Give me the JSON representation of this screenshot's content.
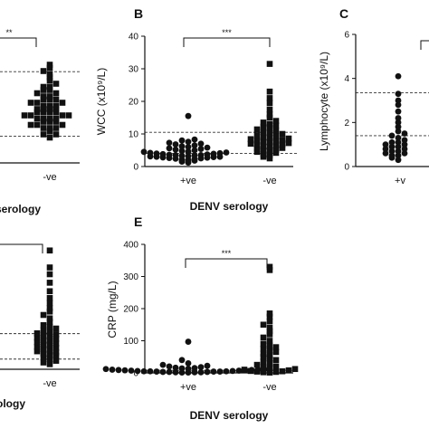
{
  "colors": {
    "ink": "#111111",
    "reference_line": "#333333"
  },
  "chart_data": [
    {
      "panel_id": "A",
      "panel_label": "",
      "type": "scatter",
      "ylabel": "",
      "xlabel": "serology",
      "categories": [
        "",
        "-ve"
      ],
      "yticks": [],
      "ylim": [
        0,
        40
      ],
      "reference_lines": [
        8.4,
        28.8
      ],
      "significance": "**",
      "series": [
        {
          "marker": "circle",
          "values": []
        },
        {
          "marker": "square",
          "values": [
            8,
            9,
            9,
            10,
            11,
            11,
            11,
            12,
            12,
            12,
            13,
            13,
            13,
            14,
            14,
            14,
            14,
            15,
            15,
            15,
            15,
            16,
            16,
            16,
            16,
            17,
            17,
            17,
            17,
            18,
            18,
            18,
            19,
            19,
            19,
            20,
            20,
            20,
            21,
            21,
            22,
            22,
            23,
            23,
            24,
            24,
            25,
            26,
            27,
            28,
            29,
            30,
            31
          ]
        }
      ]
    },
    {
      "panel_id": "B",
      "panel_label": "B",
      "type": "scatter",
      "ylabel": "WCC (x10⁹/L)",
      "xlabel": "DENV serology",
      "categories": [
        "+ve",
        "-ve"
      ],
      "yticks": [
        "0",
        "10",
        "20",
        "30",
        "40"
      ],
      "ylim": [
        0,
        40
      ],
      "reference_lines": [
        4.0,
        10.5
      ],
      "significance": "***",
      "series": [
        {
          "marker": "circle",
          "values": [
            1.2,
            1.5,
            1.8,
            2.0,
            2.1,
            2.3,
            2.4,
            2.5,
            2.6,
            2.7,
            2.8,
            2.9,
            3.0,
            3.0,
            3.1,
            3.2,
            3.3,
            3.4,
            3.5,
            3.5,
            3.6,
            3.7,
            3.8,
            3.9,
            4.0,
            4.1,
            4.2,
            4.3,
            4.5,
            4.6,
            4.8,
            5.0,
            5.2,
            5.4,
            5.6,
            5.8,
            6.0,
            6.2,
            6.5,
            6.8,
            7.0,
            7.3,
            7.6,
            8.0,
            8.3,
            15.5
          ]
        },
        {
          "marker": "square",
          "values": [
            2.5,
            3.0,
            3.4,
            3.8,
            4.2,
            4.5,
            4.8,
            5.0,
            5.2,
            5.5,
            5.7,
            6.0,
            6.2,
            6.4,
            6.6,
            6.8,
            7.0,
            7.2,
            7.4,
            7.6,
            7.8,
            8.0,
            8.2,
            8.4,
            8.6,
            8.8,
            9.0,
            9.3,
            9.6,
            10.0,
            10.3,
            10.6,
            11.0,
            11.4,
            11.8,
            12.2,
            12.6,
            13.0,
            13.5,
            14.0,
            15.0,
            16.0,
            17.5,
            19.5,
            21.0,
            23.0,
            31.5
          ]
        }
      ]
    },
    {
      "panel_id": "C",
      "panel_label": "C",
      "type": "scatter",
      "ylabel": "Lymphocyte (x10⁹/L)",
      "xlabel": "",
      "categories": [
        "+v"
      ],
      "yticks": [
        "0",
        "2",
        "4",
        "6"
      ],
      "ylim": [
        0,
        6
      ],
      "reference_lines": [
        1.4,
        3.35
      ],
      "significance": "",
      "series": [
        {
          "marker": "circle",
          "values": [
            0.3,
            0.4,
            0.5,
            0.5,
            0.6,
            0.6,
            0.7,
            0.7,
            0.8,
            0.8,
            0.9,
            0.9,
            1.0,
            1.0,
            1.1,
            1.1,
            1.2,
            1.3,
            1.4,
            1.5,
            1.6,
            1.8,
            2.0,
            2.2,
            2.5,
            2.8,
            3.0,
            3.3,
            4.1
          ]
        }
      ]
    },
    {
      "panel_id": "D",
      "panel_label": "",
      "type": "scatter",
      "ylabel": "",
      "xlabel": "ology",
      "categories": [
        "",
        "-ve"
      ],
      "yticks": [],
      "ylim": [
        0,
        40
      ],
      "reference_lines": [
        3.0,
        10.5
      ],
      "significance": "",
      "series": [
        {
          "marker": "circle",
          "values": []
        },
        {
          "marker": "square",
          "values": [
            1.5,
            2.0,
            2.5,
            3.0,
            3.5,
            4.0,
            4.3,
            4.6,
            5.0,
            5.3,
            5.6,
            6.0,
            6.3,
            6.6,
            7.0,
            7.3,
            7.6,
            8.0,
            8.3,
            8.6,
            9.0,
            9.3,
            9.6,
            10.0,
            10.3,
            10.6,
            11.0,
            11.5,
            12.0,
            12.5,
            13.0,
            14.0,
            15.0,
            16.0,
            17.0,
            18.0,
            19.5,
            21.0,
            23.0,
            25.5,
            28.0,
            30.0,
            35.0
          ]
        }
      ]
    },
    {
      "panel_id": "E",
      "panel_label": "E",
      "type": "scatter",
      "ylabel": "CRP (mg/L)",
      "xlabel": "DENV serology",
      "categories": [
        "+ve",
        "-ve"
      ],
      "yticks": [
        "0",
        "100",
        "200",
        "300",
        "400"
      ],
      "ylim": [
        0,
        400
      ],
      "reference_lines": [
        8
      ],
      "significance": "***",
      "series": [
        {
          "marker": "circle",
          "values": [
            1,
            1,
            2,
            2,
            2,
            3,
            3,
            3,
            4,
            4,
            4,
            5,
            5,
            5,
            6,
            6,
            7,
            7,
            8,
            8,
            9,
            9,
            10,
            10,
            11,
            12,
            13,
            14,
            15,
            16,
            18,
            20,
            22,
            25,
            30,
            40,
            97
          ]
        },
        {
          "marker": "square",
          "values": [
            1,
            2,
            3,
            4,
            5,
            6,
            8,
            10,
            12,
            15,
            18,
            20,
            25,
            30,
            35,
            40,
            45,
            50,
            55,
            60,
            65,
            70,
            75,
            80,
            85,
            90,
            100,
            110,
            120,
            130,
            140,
            150,
            160,
            175,
            185,
            320,
            330
          ]
        }
      ]
    }
  ]
}
